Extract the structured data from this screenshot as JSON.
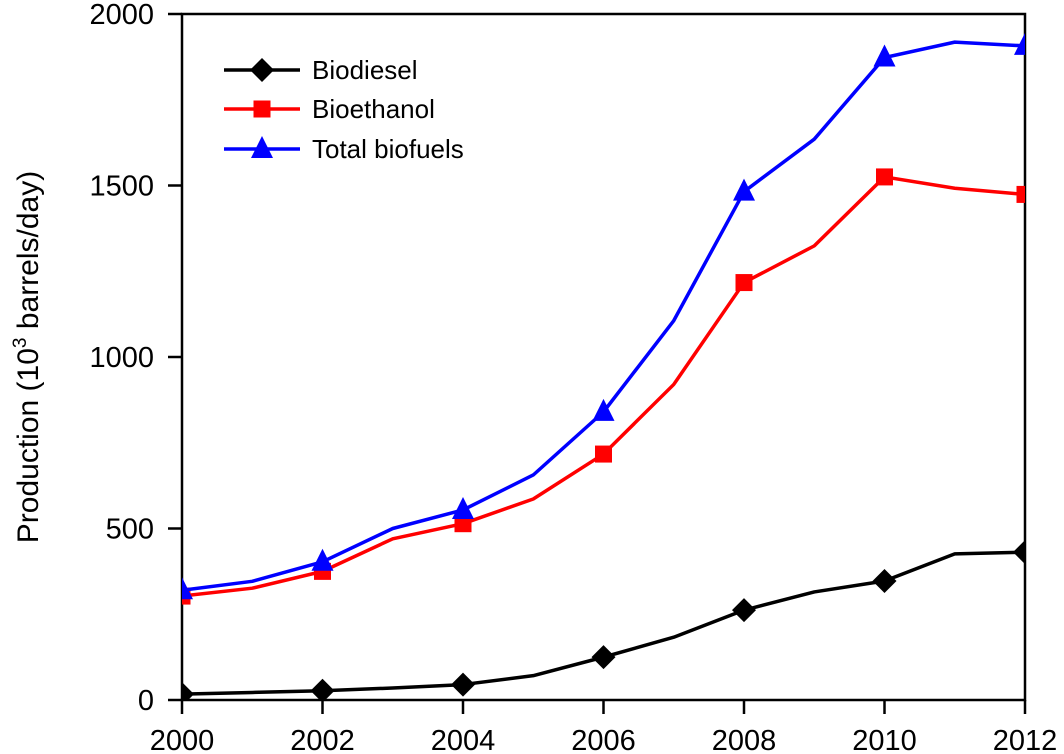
{
  "chart_data": {
    "type": "line",
    "title": "",
    "xlabel": "",
    "ylabel_main": "Production (10",
    "ylabel_sup": "3",
    "ylabel_rest": " barrels/day)",
    "ylabel": "Production (10^3 barrels/day)",
    "x": [
      2000,
      2001,
      2002,
      2003,
      2004,
      2005,
      2006,
      2007,
      2008,
      2009,
      2010,
      2011,
      2012
    ],
    "xlim": [
      2000,
      2012
    ],
    "ylim": [
      0,
      2000
    ],
    "xticks": [
      "2000",
      "2002",
      "2004",
      "2006",
      "2008",
      "2010",
      "2012"
    ],
    "xtick_values": [
      2000,
      2002,
      2004,
      2006,
      2008,
      2010,
      2012
    ],
    "yticks": [
      "0",
      "500",
      "1000",
      "1500",
      "2000"
    ],
    "ytick_values": [
      0,
      500,
      1000,
      1500,
      2000
    ],
    "grid": false,
    "legend_position": "top-left",
    "series": [
      {
        "name": "Biodiesel",
        "color": "#000000",
        "marker": "diamond",
        "marker_years": [
          2000,
          2002,
          2004,
          2006,
          2008,
          2010,
          2012
        ],
        "values": [
          17,
          22,
          27,
          35,
          45,
          71,
          125,
          183,
          262,
          315,
          347,
          426,
          431
        ]
      },
      {
        "name": "Bioethanol",
        "color": "#ff0000",
        "marker": "square",
        "marker_years": [
          2000,
          2002,
          2004,
          2006,
          2008,
          2010,
          2012
        ],
        "values": [
          303,
          326,
          375,
          470,
          514,
          586,
          717,
          920,
          1217,
          1324,
          1525,
          1492,
          1474
        ]
      },
      {
        "name": "Total biofuels",
        "color": "#0000ff",
        "marker": "triangle",
        "marker_years": [
          2000,
          2002,
          2004,
          2006,
          2008,
          2010,
          2012
        ],
        "values": [
          320,
          346,
          403,
          500,
          554,
          656,
          840,
          1106,
          1482,
          1635,
          1873,
          1918,
          1907
        ]
      }
    ]
  }
}
